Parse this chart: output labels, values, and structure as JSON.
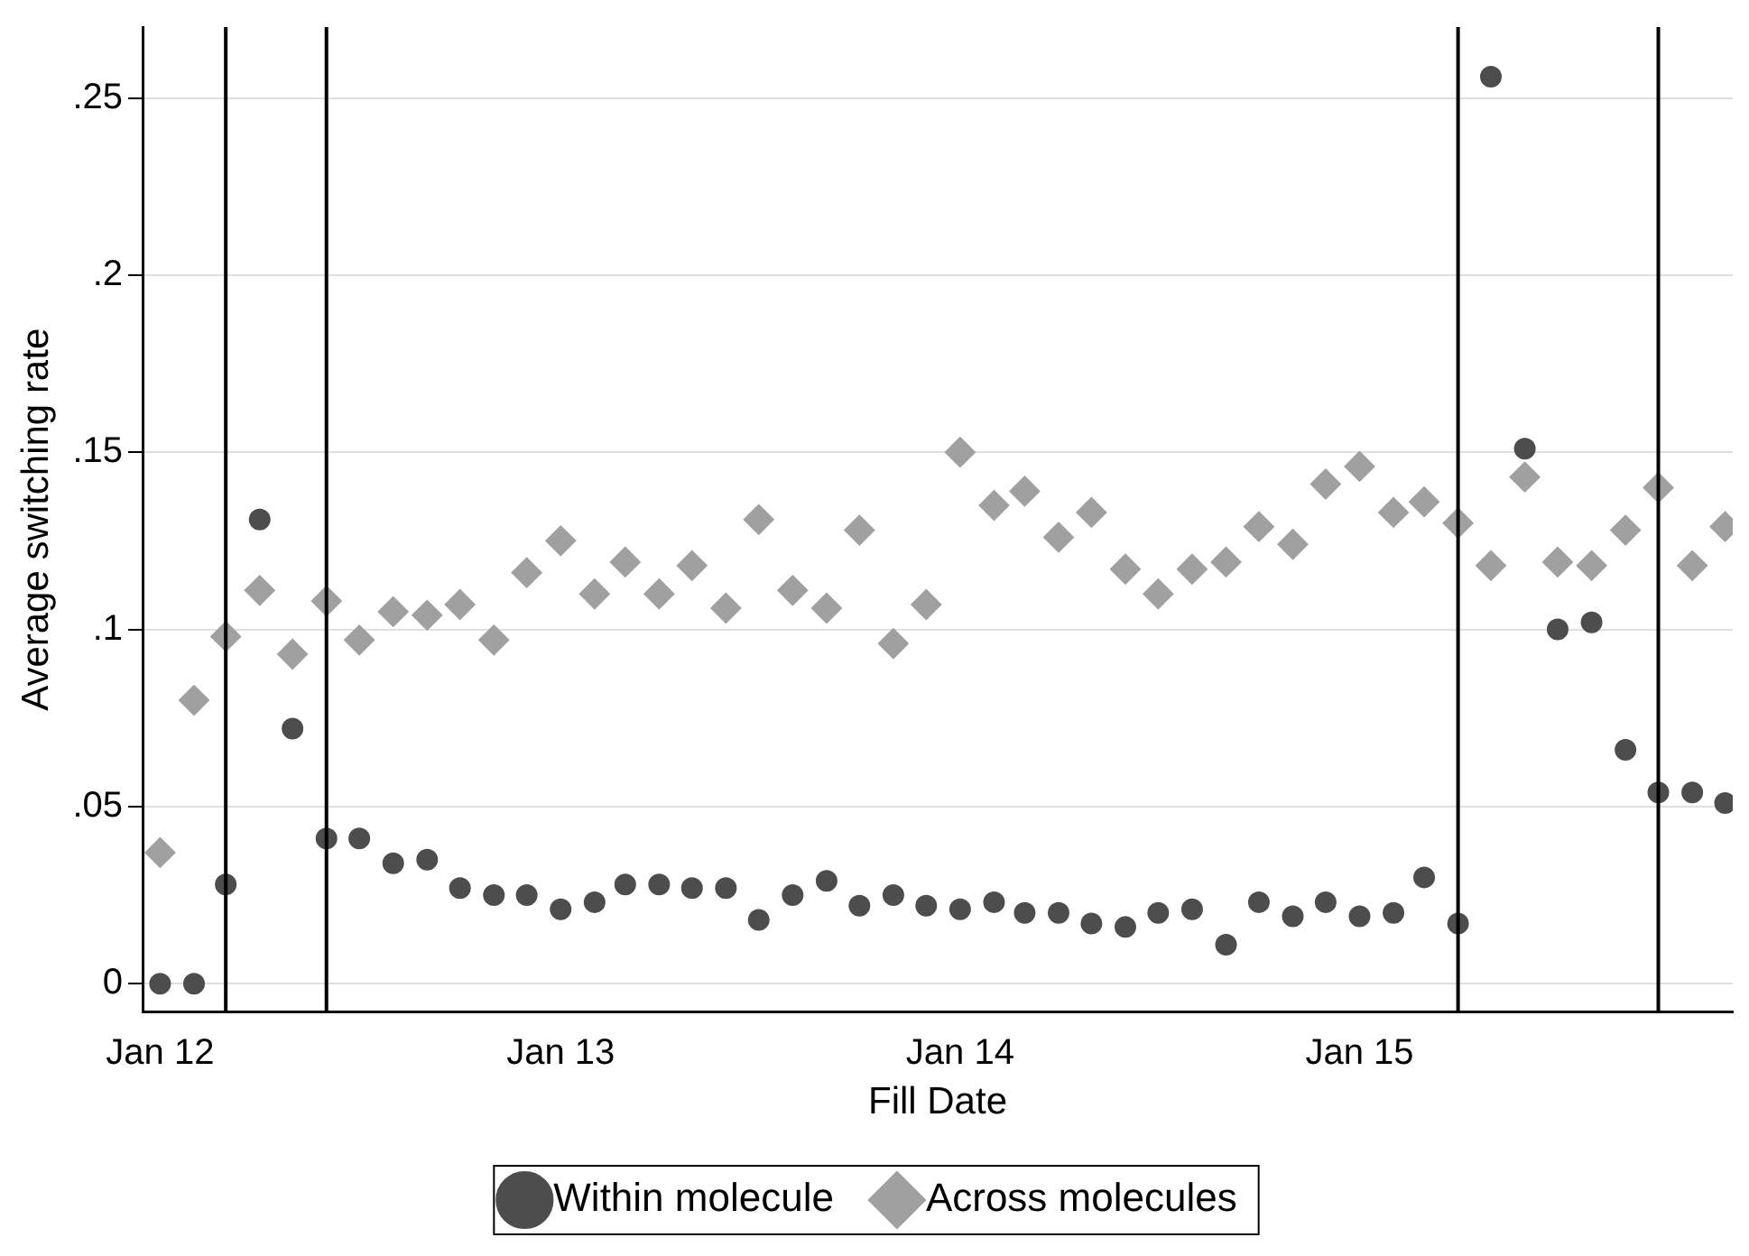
{
  "chart_data": {
    "type": "scatter",
    "xlabel": "Fill Date",
    "ylabel": "Average switching rate",
    "x": [
      "2012-01",
      "2012-02",
      "2012-03",
      "2012-04",
      "2012-05",
      "2012-06",
      "2012-07",
      "2012-08",
      "2012-09",
      "2012-10",
      "2012-11",
      "2012-12",
      "2013-01",
      "2013-02",
      "2013-03",
      "2013-04",
      "2013-05",
      "2013-06",
      "2013-07",
      "2013-08",
      "2013-09",
      "2013-10",
      "2013-11",
      "2013-12",
      "2014-01",
      "2014-02",
      "2014-03",
      "2014-04",
      "2014-05",
      "2014-06",
      "2014-07",
      "2014-08",
      "2014-09",
      "2014-10",
      "2014-11",
      "2014-12",
      "2015-01",
      "2015-02",
      "2015-03",
      "2015-04",
      "2015-05",
      "2015-06",
      "2015-07",
      "2015-08",
      "2015-09",
      "2015-10",
      "2015-11",
      "2015-12"
    ],
    "series": [
      {
        "name": "Within molecule",
        "color": "#4d4d4d",
        "marker": "circle",
        "values": [
          0,
          0,
          0.028,
          0.131,
          0.072,
          0.041,
          0.041,
          0.034,
          0.035,
          0.027,
          0.025,
          0.025,
          0.021,
          0.023,
          0.028,
          0.028,
          0.027,
          0.027,
          0.018,
          0.025,
          0.029,
          0.022,
          0.025,
          0.022,
          0.021,
          0.023,
          0.02,
          0.02,
          0.017,
          0.016,
          0.02,
          0.021,
          0.011,
          0.023,
          0.019,
          0.023,
          0.019,
          0.02,
          0.03,
          0.017,
          0.256,
          0.151,
          0.1,
          0.102,
          0.066,
          0.054,
          0.054,
          0.051
        ]
      },
      {
        "name": "Across molecules",
        "color": "#a0a0a0",
        "marker": "diamond",
        "values": [
          0.037,
          0.08,
          0.098,
          0.111,
          0.093,
          0.108,
          0.097,
          0.105,
          0.104,
          0.107,
          0.097,
          0.116,
          0.125,
          0.11,
          0.119,
          0.11,
          0.118,
          0.106,
          0.131,
          0.111,
          0.106,
          0.128,
          0.096,
          0.107,
          0.15,
          0.135,
          0.139,
          0.126,
          0.133,
          0.117,
          0.11,
          0.117,
          0.119,
          0.129,
          0.124,
          0.141,
          0.146,
          0.133,
          0.136,
          0.13,
          0.118,
          0.143,
          0.119,
          0.118,
          0.128,
          0.14,
          0.118,
          0.129
        ]
      }
    ],
    "xlim": [
      "2011-12-16",
      "2015-12-08"
    ],
    "xticks": [
      {
        "value": "2012-01",
        "label": "Jan 12"
      },
      {
        "value": "2013-01",
        "label": "Jan 13"
      },
      {
        "value": "2014-01",
        "label": "Jan 14"
      },
      {
        "value": "2015-01",
        "label": "Jan 15"
      }
    ],
    "ylim": [
      -0.008,
      0.27
    ],
    "yticks": [
      {
        "value": 0,
        "label": "0"
      },
      {
        "value": 0.05,
        "label": ".05"
      },
      {
        "value": 0.1,
        "label": ".1"
      },
      {
        "value": 0.15,
        "label": ".15"
      },
      {
        "value": 0.2,
        "label": ".2"
      },
      {
        "value": 0.25,
        "label": ".25"
      }
    ],
    "ref_lines": [
      {
        "axis": "x",
        "value": "2012-03",
        "color": "#000000"
      },
      {
        "axis": "x",
        "value": "2012-06",
        "color": "#000000"
      },
      {
        "axis": "x",
        "value": "2015-04",
        "color": "#000000"
      },
      {
        "axis": "x",
        "value": "2015-10",
        "color": "#000000"
      }
    ],
    "grid": "y",
    "legend": "bottom"
  }
}
